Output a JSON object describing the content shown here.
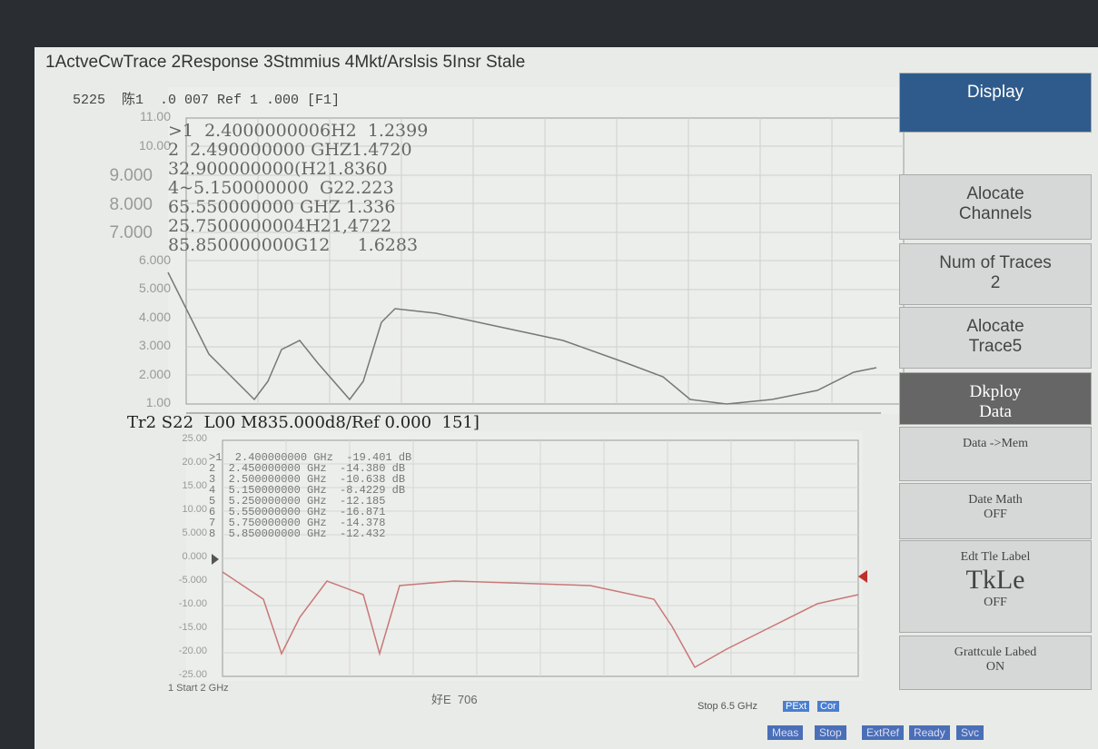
{
  "menu": "1ActveCwTrace 2Response 3Stmmius 4Mkt/Arslsis 5Insr Stale",
  "upper": {
    "header": "5225  陈1  .0 007 Ref 1 .000 [F1]",
    "ticks": [
      "11.00",
      "10.00",
      "9.000",
      "8.000",
      "7.000",
      "6.000",
      "5.000",
      "4.000",
      "3.000",
      "2.000",
      "1.00"
    ],
    "markers": [
      ">1  2.4000000006H2  1.2399",
      "2  2.490000000 GHZ1.4720",
      "32.900000000(H21.8360",
      "4~5.150000000  G22.223",
      "65.550000000 GHZ 1.336",
      "25.7500000004H21,4722",
      "85.850000000G12     1.6283"
    ]
  },
  "lower": {
    "header": "Tr2 S22  L00 M835.000d8/Ref 0.000  151]",
    "ticks": [
      "25.00",
      "20.00",
      "15.00",
      "10.00",
      "5.000",
      "0.000",
      "-5.000",
      "-10.00",
      "-15.00",
      "-20.00",
      "-25.00"
    ],
    "markers": [
      ">1  2.400000000 GHz  -19.401 dB",
      "2  2.450000000 GHz  -14.380 dB",
      "3  2.500000000 GHz  -10.638 dB",
      "4  5.150000000 GHz  -8.4229 dB",
      "5  5.250000000 GHz  -12.185",
      "6  5.550000000 GHz  -16.871",
      "7  5.750000000 GHz  -14.378",
      "8  5.850000000 GHz  -12.432"
    ]
  },
  "footer": {
    "start": "1 Start 2 GHz",
    "center": "好E  706",
    "stop": "Stop 6.5 GHz",
    "pext": "PExt",
    "cor": "Cor"
  },
  "status": [
    "Meas",
    "Stop",
    "ExtRef",
    "Ready",
    "Svc"
  ],
  "softkeys": [
    [
      "Display"
    ],
    [
      "Alocate",
      "Channels"
    ],
    [
      "Num of Traces",
      "2"
    ],
    [
      "Alocate",
      "Trace5"
    ],
    [
      "Dkploy",
      "Data"
    ],
    [
      "Data ->Mem"
    ],
    [
      "Date Math",
      "OFF"
    ],
    [
      "Edt Tle Label",
      "TkLe",
      "OFF"
    ],
    [
      "Grattcule Labed",
      "ON"
    ]
  ]
}
